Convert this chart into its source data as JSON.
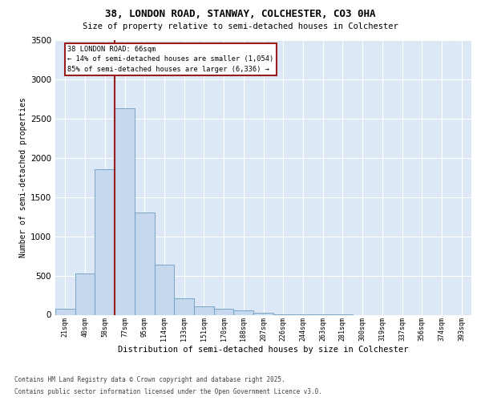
{
  "title1": "38, LONDON ROAD, STANWAY, COLCHESTER, CO3 0HA",
  "title2": "Size of property relative to semi-detached houses in Colchester",
  "xlabel": "Distribution of semi-detached houses by size in Colchester",
  "ylabel": "Number of semi-detached properties",
  "categories": [
    "21sqm",
    "40sqm",
    "58sqm",
    "77sqm",
    "95sqm",
    "114sqm",
    "133sqm",
    "151sqm",
    "170sqm",
    "188sqm",
    "207sqm",
    "226sqm",
    "244sqm",
    "263sqm",
    "281sqm",
    "300sqm",
    "319sqm",
    "337sqm",
    "356sqm",
    "374sqm",
    "393sqm"
  ],
  "values": [
    75,
    530,
    1850,
    2630,
    1300,
    640,
    210,
    110,
    75,
    55,
    30,
    10,
    5,
    2,
    1,
    0,
    0,
    0,
    0,
    0,
    0
  ],
  "bar_color": "#c5d8ed",
  "bar_edge_color": "#6a9cbf",
  "property_line_x": 2.5,
  "property_label": "38 LONDON ROAD: 66sqm",
  "smaller_pct": "14% of semi-detached houses are smaller (1,054)",
  "larger_pct": "85% of semi-detached houses are larger (6,336)",
  "ylim_max": 3500,
  "yticks": [
    0,
    500,
    1000,
    1500,
    2000,
    2500,
    3000,
    3500
  ],
  "line_color": "#9b1c1c",
  "background_color": "#dce8f5",
  "footer1": "Contains HM Land Registry data © Crown copyright and database right 2025.",
  "footer2": "Contains public sector information licensed under the Open Government Licence v3.0."
}
